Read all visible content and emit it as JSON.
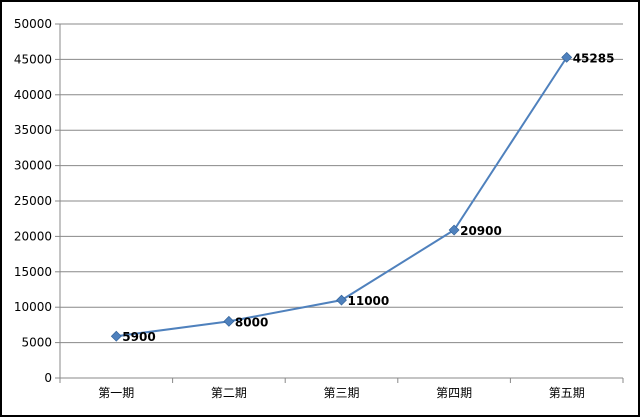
{
  "chart_data": {
    "type": "line",
    "categories": [
      "第一期",
      "第二期",
      "第三期",
      "第四期",
      "第五期"
    ],
    "series": [
      {
        "values": [
          5900,
          8000,
          11000,
          20900,
          45285
        ],
        "color": "#4f81bd",
        "marker": "diamond"
      }
    ],
    "data_labels": [
      "5900",
      "8000",
      "11000",
      "20900",
      "45285"
    ],
    "ylim": [
      0,
      50000
    ],
    "yticks": [
      0,
      5000,
      10000,
      15000,
      20000,
      25000,
      30000,
      35000,
      40000,
      45000,
      50000
    ],
    "ytick_labels": [
      "0",
      "5000",
      "10000",
      "15000",
      "20000",
      "25000",
      "30000",
      "35000",
      "40000",
      "45000",
      "50000"
    ],
    "grid": true,
    "legend": false
  }
}
